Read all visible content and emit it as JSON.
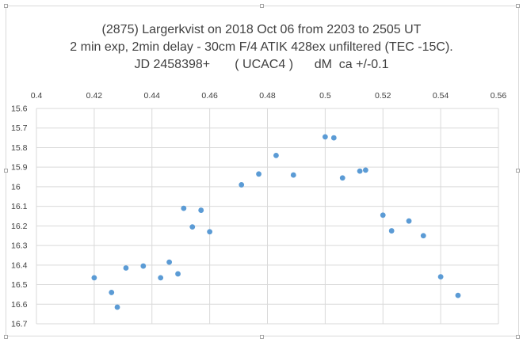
{
  "chart_data": {
    "type": "scatter",
    "title": [
      "(2875) Largerkvist on 2018 Oct 06 from 2203 to 2505 UT",
      "2 min exp, 2min delay - 30cm F/4 ATIK 428ex unfiltered (TEC -15C).",
      "JD 2458398+       ( UCAC4 )      dM  ca +/-0.1"
    ],
    "xlabel": "",
    "ylabel": "",
    "xlim": [
      0.4,
      0.56
    ],
    "ylim": [
      15.6,
      16.7
    ],
    "y_reversed": true,
    "x_axis_position": "top",
    "grid": true,
    "legend": "none",
    "marker_color": "#5b9bd5",
    "x_ticks": [
      "0.4",
      "0.42",
      "0.44",
      "0.46",
      "0.48",
      "0.5",
      "0.52",
      "0.54",
      "0.56"
    ],
    "y_ticks": [
      "15.6",
      "15.7",
      "15.8",
      "15.9",
      "16",
      "16.1",
      "16.2",
      "16.3",
      "16.4",
      "16.5",
      "16.6",
      "16.7"
    ],
    "points": [
      {
        "x": 0.42,
        "y": 16.465
      },
      {
        "x": 0.426,
        "y": 16.54
      },
      {
        "x": 0.428,
        "y": 16.615
      },
      {
        "x": 0.431,
        "y": 16.415
      },
      {
        "x": 0.437,
        "y": 16.405
      },
      {
        "x": 0.443,
        "y": 16.465
      },
      {
        "x": 0.446,
        "y": 16.385
      },
      {
        "x": 0.449,
        "y": 16.445
      },
      {
        "x": 0.451,
        "y": 16.11
      },
      {
        "x": 0.454,
        "y": 16.205
      },
      {
        "x": 0.457,
        "y": 16.12
      },
      {
        "x": 0.46,
        "y": 16.23
      },
      {
        "x": 0.471,
        "y": 15.99
      },
      {
        "x": 0.477,
        "y": 15.935
      },
      {
        "x": 0.483,
        "y": 15.84
      },
      {
        "x": 0.489,
        "y": 15.94
      },
      {
        "x": 0.5,
        "y": 15.745
      },
      {
        "x": 0.503,
        "y": 15.75
      },
      {
        "x": 0.506,
        "y": 15.955
      },
      {
        "x": 0.512,
        "y": 15.92
      },
      {
        "x": 0.514,
        "y": 15.915
      },
      {
        "x": 0.52,
        "y": 16.145
      },
      {
        "x": 0.523,
        "y": 16.225
      },
      {
        "x": 0.529,
        "y": 16.175
      },
      {
        "x": 0.534,
        "y": 16.25
      },
      {
        "x": 0.54,
        "y": 16.46
      },
      {
        "x": 0.546,
        "y": 16.555
      }
    ]
  }
}
